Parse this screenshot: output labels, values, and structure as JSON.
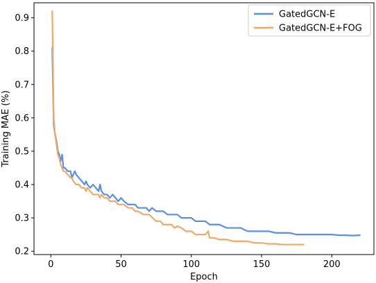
{
  "chart_data": {
    "type": "line",
    "title": "",
    "xlabel": "Epoch",
    "ylabel": "Training MAE (%)",
    "xlim": [
      -12,
      230
    ],
    "ylim": [
      0.19,
      0.945
    ],
    "x_ticks": [
      0,
      50,
      100,
      150,
      200
    ],
    "y_ticks": [
      0.2,
      0.3,
      0.4,
      0.5,
      0.6,
      0.7,
      0.8,
      0.9
    ],
    "grid": false,
    "legend_position": "top-right",
    "series": [
      {
        "name": "GatedGCN-E",
        "color": "#5b8fe0",
        "points": [
          [
            1,
            0.81
          ],
          [
            2,
            0.58
          ],
          [
            3,
            0.55
          ],
          [
            4,
            0.53
          ],
          [
            5,
            0.5
          ],
          [
            6,
            0.49
          ],
          [
            7,
            0.47
          ],
          [
            8,
            0.49
          ],
          [
            9,
            0.45
          ],
          [
            10,
            0.45
          ],
          [
            12,
            0.44
          ],
          [
            14,
            0.44
          ],
          [
            15,
            0.42
          ],
          [
            16,
            0.43
          ],
          [
            17,
            0.44
          ],
          [
            18,
            0.43
          ],
          [
            20,
            0.42
          ],
          [
            22,
            0.41
          ],
          [
            24,
            0.4
          ],
          [
            25,
            0.41
          ],
          [
            26,
            0.4
          ],
          [
            28,
            0.39
          ],
          [
            30,
            0.4
          ],
          [
            32,
            0.39
          ],
          [
            34,
            0.38
          ],
          [
            35,
            0.4
          ],
          [
            36,
            0.38
          ],
          [
            38,
            0.37
          ],
          [
            40,
            0.37
          ],
          [
            42,
            0.36
          ],
          [
            44,
            0.37
          ],
          [
            46,
            0.36
          ],
          [
            48,
            0.35
          ],
          [
            50,
            0.36
          ],
          [
            52,
            0.35
          ],
          [
            55,
            0.34
          ],
          [
            58,
            0.34
          ],
          [
            60,
            0.34
          ],
          [
            62,
            0.33
          ],
          [
            65,
            0.33
          ],
          [
            68,
            0.33
          ],
          [
            70,
            0.32
          ],
          [
            72,
            0.33
          ],
          [
            75,
            0.32
          ],
          [
            78,
            0.32
          ],
          [
            80,
            0.32
          ],
          [
            83,
            0.31
          ],
          [
            86,
            0.31
          ],
          [
            90,
            0.31
          ],
          [
            93,
            0.3
          ],
          [
            96,
            0.3
          ],
          [
            100,
            0.3
          ],
          [
            103,
            0.29
          ],
          [
            106,
            0.29
          ],
          [
            110,
            0.29
          ],
          [
            113,
            0.28
          ],
          [
            116,
            0.28
          ],
          [
            120,
            0.28
          ],
          [
            125,
            0.27
          ],
          [
            130,
            0.27
          ],
          [
            135,
            0.27
          ],
          [
            140,
            0.26
          ],
          [
            145,
            0.26
          ],
          [
            150,
            0.26
          ],
          [
            155,
            0.26
          ],
          [
            160,
            0.255
          ],
          [
            165,
            0.255
          ],
          [
            170,
            0.255
          ],
          [
            175,
            0.25
          ],
          [
            180,
            0.25
          ],
          [
            185,
            0.25
          ],
          [
            190,
            0.25
          ],
          [
            195,
            0.25
          ],
          [
            200,
            0.25
          ],
          [
            205,
            0.248
          ],
          [
            210,
            0.248
          ],
          [
            215,
            0.247
          ],
          [
            220,
            0.248
          ]
        ]
      },
      {
        "name": "GatedGCN-E+FOG",
        "color": "#f0a868",
        "points": [
          [
            1,
            0.92
          ],
          [
            2,
            0.6
          ],
          [
            3,
            0.55
          ],
          [
            4,
            0.52
          ],
          [
            5,
            0.49
          ],
          [
            6,
            0.48
          ],
          [
            7,
            0.46
          ],
          [
            8,
            0.45
          ],
          [
            9,
            0.44
          ],
          [
            10,
            0.44
          ],
          [
            12,
            0.43
          ],
          [
            14,
            0.42
          ],
          [
            15,
            0.42
          ],
          [
            16,
            0.41
          ],
          [
            18,
            0.4
          ],
          [
            20,
            0.4
          ],
          [
            22,
            0.39
          ],
          [
            24,
            0.39
          ],
          [
            25,
            0.38
          ],
          [
            26,
            0.39
          ],
          [
            28,
            0.38
          ],
          [
            30,
            0.37
          ],
          [
            32,
            0.37
          ],
          [
            34,
            0.37
          ],
          [
            35,
            0.36
          ],
          [
            36,
            0.37
          ],
          [
            38,
            0.36
          ],
          [
            40,
            0.36
          ],
          [
            42,
            0.35
          ],
          [
            44,
            0.35
          ],
          [
            46,
            0.35
          ],
          [
            48,
            0.34
          ],
          [
            50,
            0.34
          ],
          [
            52,
            0.34
          ],
          [
            55,
            0.33
          ],
          [
            58,
            0.33
          ],
          [
            60,
            0.32
          ],
          [
            62,
            0.32
          ],
          [
            64,
            0.315
          ],
          [
            66,
            0.31
          ],
          [
            68,
            0.31
          ],
          [
            70,
            0.31
          ],
          [
            75,
            0.29
          ],
          [
            78,
            0.29
          ],
          [
            80,
            0.28
          ],
          [
            83,
            0.28
          ],
          [
            86,
            0.28
          ],
          [
            88,
            0.27
          ],
          [
            90,
            0.275
          ],
          [
            93,
            0.27
          ],
          [
            96,
            0.26
          ],
          [
            100,
            0.26
          ],
          [
            103,
            0.25
          ],
          [
            106,
            0.25
          ],
          [
            110,
            0.25
          ],
          [
            112,
            0.26
          ],
          [
            113,
            0.24
          ],
          [
            116,
            0.24
          ],
          [
            120,
            0.235
          ],
          [
            125,
            0.235
          ],
          [
            130,
            0.23
          ],
          [
            135,
            0.23
          ],
          [
            140,
            0.23
          ],
          [
            145,
            0.225
          ],
          [
            150,
            0.225
          ],
          [
            155,
            0.222
          ],
          [
            160,
            0.222
          ],
          [
            165,
            0.22
          ],
          [
            170,
            0.22
          ],
          [
            175,
            0.22
          ],
          [
            180,
            0.22
          ]
        ]
      }
    ]
  }
}
